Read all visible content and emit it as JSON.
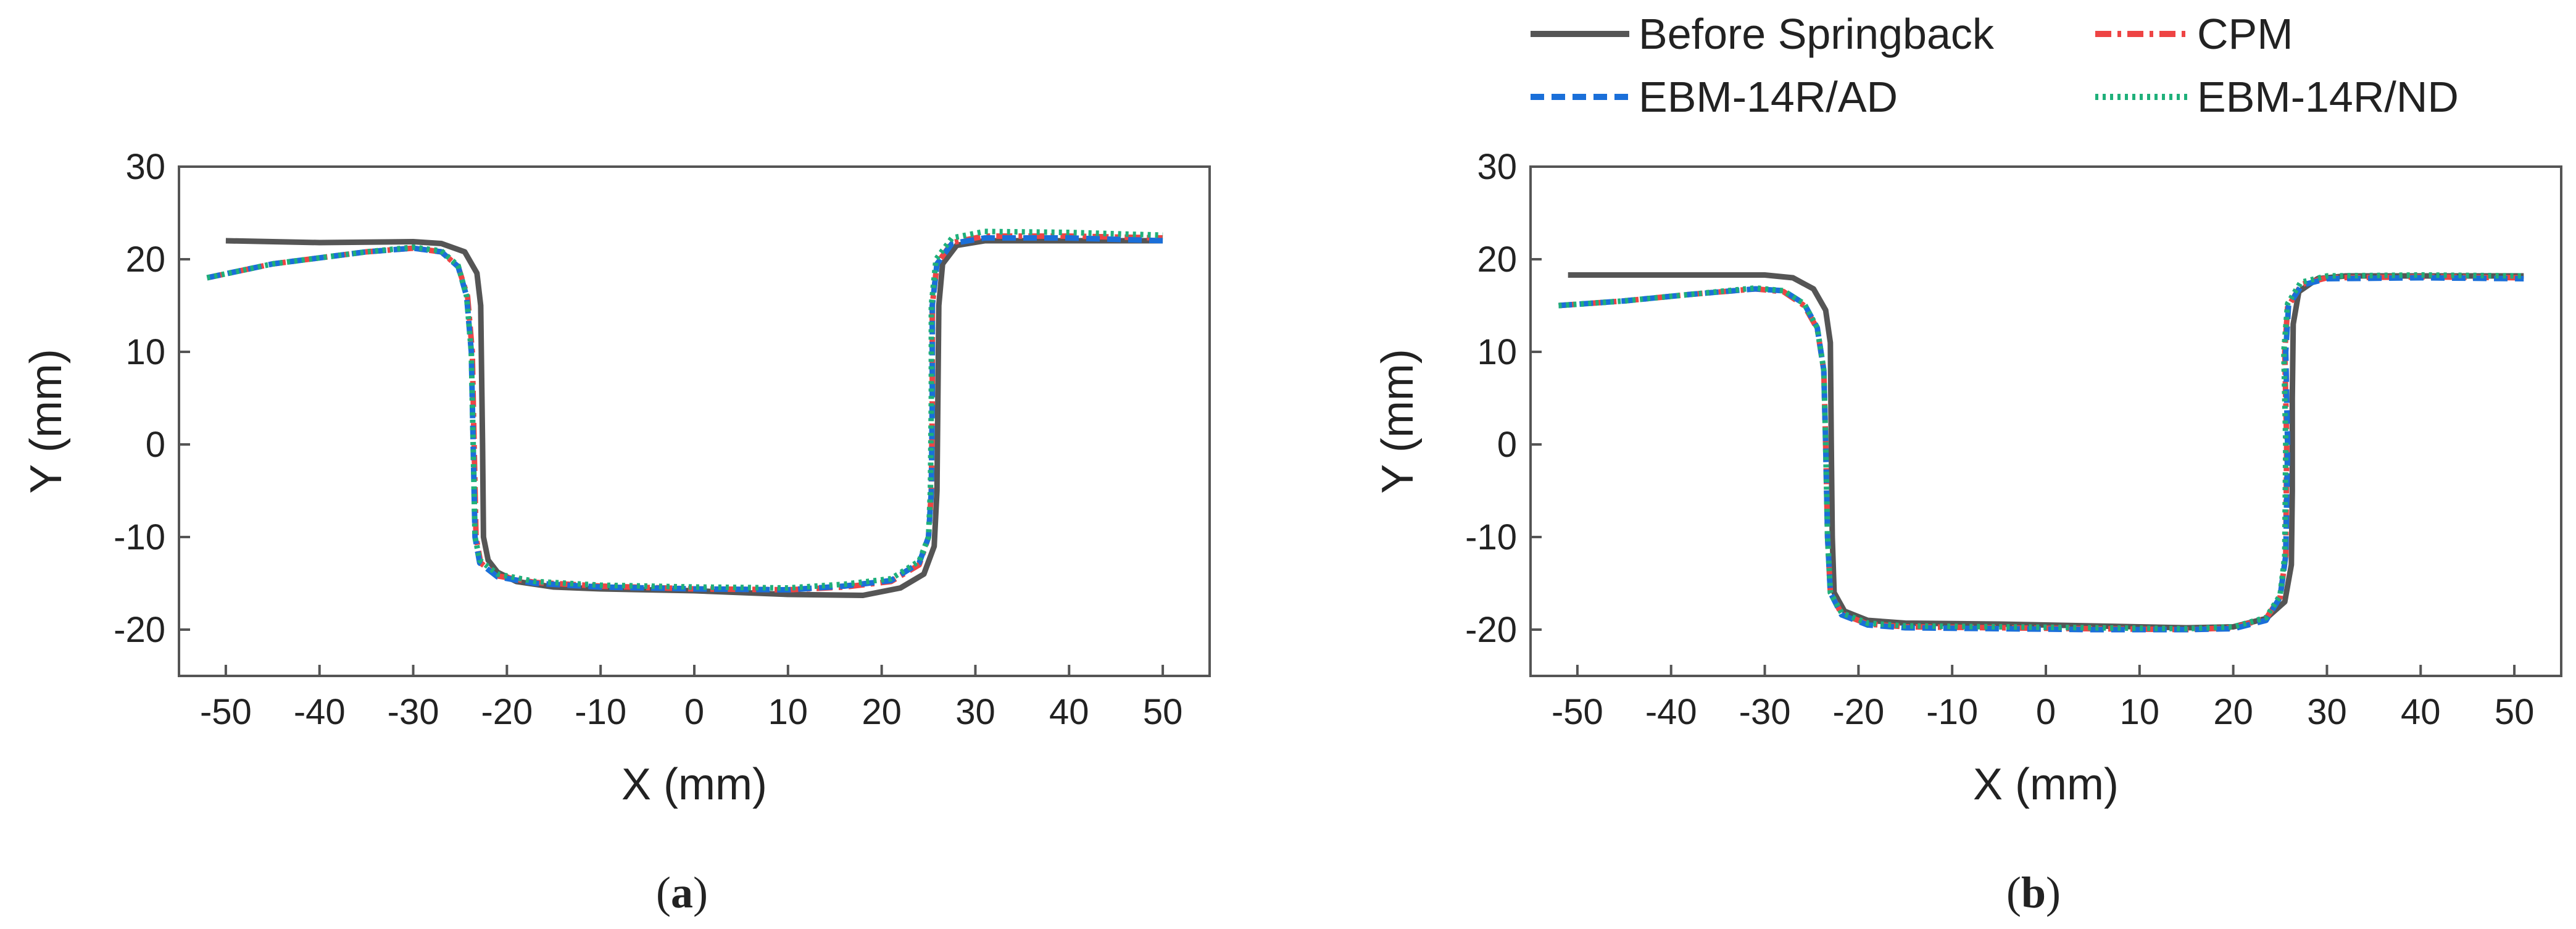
{
  "legend": [
    {
      "label": "Before Springback",
      "color": "#555555",
      "dash": "solid"
    },
    {
      "label": "CPM",
      "color": "#ee4444",
      "dash": "dashdot"
    },
    {
      "label": "EBM-14R/AD",
      "color": "#1a6fd9",
      "dash": "dash"
    },
    {
      "label": "EBM-14R/ND",
      "color": "#1fb07a",
      "dash": "dot"
    }
  ],
  "chart_data": [
    {
      "type": "line",
      "panel": "a",
      "caption": "a",
      "xlabel": "X (mm)",
      "ylabel": "Y (mm)",
      "xlim": [
        -55,
        55
      ],
      "ylim": [
        -25,
        30
      ],
      "xticks": [
        -50,
        -40,
        -30,
        -20,
        -10,
        0,
        10,
        20,
        30,
        40,
        50
      ],
      "yticks": [
        -20,
        -10,
        0,
        10,
        20,
        30
      ],
      "series": [
        {
          "name": "Before Springback",
          "points": [
            [
              -50,
              22
            ],
            [
              -40,
              21.8
            ],
            [
              -30,
              21.9
            ],
            [
              -27,
              21.7
            ],
            [
              -24.5,
              20.8
            ],
            [
              -23.2,
              18.5
            ],
            [
              -22.8,
              15
            ],
            [
              -22.6,
              0
            ],
            [
              -22.5,
              -10
            ],
            [
              -22,
              -12.5
            ],
            [
              -21,
              -13.8
            ],
            [
              -19,
              -14.8
            ],
            [
              -15,
              -15.4
            ],
            [
              -10,
              -15.6
            ],
            [
              0,
              -15.8
            ],
            [
              10,
              -16.2
            ],
            [
              18,
              -16.3
            ],
            [
              22,
              -15.5
            ],
            [
              24.5,
              -14
            ],
            [
              25.6,
              -11
            ],
            [
              25.9,
              -5
            ],
            [
              26,
              5
            ],
            [
              26.1,
              15
            ],
            [
              26.5,
              19.5
            ],
            [
              28,
              21.5
            ],
            [
              31,
              22
            ],
            [
              40,
              22
            ],
            [
              50,
              22
            ]
          ]
        },
        {
          "name": "CPM",
          "points": [
            [
              -52,
              18
            ],
            [
              -45,
              19.5
            ],
            [
              -35,
              20.8
            ],
            [
              -30,
              21.2
            ],
            [
              -27,
              20.8
            ],
            [
              -25.2,
              19.2
            ],
            [
              -24.2,
              16
            ],
            [
              -23.7,
              10
            ],
            [
              -23.5,
              0
            ],
            [
              -23.3,
              -10
            ],
            [
              -22.8,
              -12.8
            ],
            [
              -21,
              -14.2
            ],
            [
              -17,
              -14.9
            ],
            [
              -10,
              -15.3
            ],
            [
              0,
              -15.6
            ],
            [
              10,
              -15.7
            ],
            [
              16,
              -15.4
            ],
            [
              21,
              -14.8
            ],
            [
              24,
              -13
            ],
            [
              25,
              -10
            ],
            [
              25.3,
              -5
            ],
            [
              25.4,
              5
            ],
            [
              25.4,
              15
            ],
            [
              25.9,
              19.5
            ],
            [
              27.5,
              21.8
            ],
            [
              31,
              22.5
            ],
            [
              40,
              22.5
            ],
            [
              50,
              22.3
            ]
          ]
        },
        {
          "name": "EBM-14R/AD",
          "points": [
            [
              -52,
              18
            ],
            [
              -45,
              19.5
            ],
            [
              -35,
              20.8
            ],
            [
              -30,
              21.2
            ],
            [
              -27,
              20.8
            ],
            [
              -25.2,
              19.2
            ],
            [
              -24.3,
              16
            ],
            [
              -23.8,
              10
            ],
            [
              -23.6,
              0
            ],
            [
              -23.4,
              -10
            ],
            [
              -22.9,
              -12.8
            ],
            [
              -21,
              -14.3
            ],
            [
              -17,
              -15
            ],
            [
              -10,
              -15.4
            ],
            [
              0,
              -15.6
            ],
            [
              10,
              -15.7
            ],
            [
              16,
              -15.3
            ],
            [
              21,
              -14.7
            ],
            [
              24,
              -12.8
            ],
            [
              25,
              -10
            ],
            [
              25.3,
              -5
            ],
            [
              25.4,
              5
            ],
            [
              25.4,
              15
            ],
            [
              25.9,
              19.5
            ],
            [
              27.5,
              21.7
            ],
            [
              31,
              22.3
            ],
            [
              40,
              22.3
            ],
            [
              50,
              22
            ]
          ]
        },
        {
          "name": "EBM-14R/ND",
          "points": [
            [
              -52,
              18
            ],
            [
              -45,
              19.5
            ],
            [
              -35,
              20.8
            ],
            [
              -30,
              21.3
            ],
            [
              -27,
              20.9
            ],
            [
              -25.2,
              19.3
            ],
            [
              -24.3,
              16
            ],
            [
              -23.8,
              10
            ],
            [
              -23.6,
              0
            ],
            [
              -23.4,
              -10
            ],
            [
              -22.9,
              -12.5
            ],
            [
              -21,
              -14
            ],
            [
              -17,
              -14.8
            ],
            [
              -10,
              -15.2
            ],
            [
              0,
              -15.4
            ],
            [
              10,
              -15.5
            ],
            [
              16,
              -15.1
            ],
            [
              21,
              -14.5
            ],
            [
              24,
              -12.6
            ],
            [
              25,
              -10
            ],
            [
              25.2,
              -5
            ],
            [
              25.3,
              5
            ],
            [
              25.3,
              15
            ],
            [
              25.8,
              20
            ],
            [
              27.5,
              22.3
            ],
            [
              31,
              23
            ],
            [
              40,
              22.9
            ],
            [
              50,
              22.6
            ]
          ]
        }
      ]
    },
    {
      "type": "line",
      "panel": "b",
      "caption": "b",
      "xlabel": "X (mm)",
      "ylabel": "Y (mm)",
      "xlim": [
        -55,
        55
      ],
      "ylim": [
        -25,
        30
      ],
      "xticks": [
        -50,
        -40,
        -30,
        -20,
        -10,
        0,
        10,
        20,
        30,
        40,
        50
      ],
      "yticks": [
        -20,
        -10,
        0,
        10,
        20,
        30
      ],
      "series": [
        {
          "name": "Before Springback",
          "points": [
            [
              -51,
              18.3
            ],
            [
              -40,
              18.3
            ],
            [
              -30,
              18.3
            ],
            [
              -27,
              18
            ],
            [
              -24.8,
              16.8
            ],
            [
              -23.5,
              14.5
            ],
            [
              -23,
              11
            ],
            [
              -22.9,
              0
            ],
            [
              -22.8,
              -10
            ],
            [
              -22.6,
              -16
            ],
            [
              -21.5,
              -18
            ],
            [
              -19,
              -19
            ],
            [
              -15,
              -19.3
            ],
            [
              -5,
              -19.4
            ],
            [
              5,
              -19.6
            ],
            [
              15,
              -19.8
            ],
            [
              20,
              -19.7
            ],
            [
              23.5,
              -18.8
            ],
            [
              25.5,
              -17
            ],
            [
              26.2,
              -13
            ],
            [
              26.3,
              -5
            ],
            [
              26.3,
              5
            ],
            [
              26.4,
              13
            ],
            [
              27,
              16.5
            ],
            [
              29,
              17.9
            ],
            [
              32,
              18.2
            ],
            [
              40,
              18.2
            ],
            [
              51,
              18.2
            ]
          ]
        },
        {
          "name": "CPM",
          "points": [
            [
              -52,
              15
            ],
            [
              -45,
              15.5
            ],
            [
              -38,
              16.2
            ],
            [
              -31,
              16.8
            ],
            [
              -28,
              16.5
            ],
            [
              -25.8,
              15
            ],
            [
              -24.4,
              12.5
            ],
            [
              -23.7,
              8
            ],
            [
              -23.5,
              0
            ],
            [
              -23.3,
              -10
            ],
            [
              -23,
              -16
            ],
            [
              -21.8,
              -18.3
            ],
            [
              -19,
              -19.4
            ],
            [
              -15,
              -19.7
            ],
            [
              -5,
              -19.8
            ],
            [
              5,
              -19.9
            ],
            [
              15,
              -20
            ],
            [
              20,
              -19.8
            ],
            [
              23.5,
              -18.8
            ],
            [
              25,
              -16.5
            ],
            [
              25.6,
              -12
            ],
            [
              25.7,
              0
            ],
            [
              25.5,
              10
            ],
            [
              25.8,
              14.8
            ],
            [
              27.3,
              17.3
            ],
            [
              30,
              18
            ],
            [
              40,
              18.1
            ],
            [
              51,
              18
            ]
          ]
        },
        {
          "name": "EBM-14R/AD",
          "points": [
            [
              -52,
              15
            ],
            [
              -45,
              15.5
            ],
            [
              -38,
              16.2
            ],
            [
              -31,
              16.8
            ],
            [
              -28,
              16.6
            ],
            [
              -25.8,
              15.2
            ],
            [
              -24.4,
              12.6
            ],
            [
              -23.7,
              8
            ],
            [
              -23.5,
              0
            ],
            [
              -23.3,
              -10
            ],
            [
              -23,
              -16
            ],
            [
              -21.8,
              -18.4
            ],
            [
              -19,
              -19.5
            ],
            [
              -15,
              -19.8
            ],
            [
              -5,
              -19.9
            ],
            [
              5,
              -20
            ],
            [
              15,
              -20
            ],
            [
              20,
              -19.9
            ],
            [
              23.5,
              -19
            ],
            [
              25,
              -16.5
            ],
            [
              25.6,
              -12
            ],
            [
              25.8,
              0
            ],
            [
              25.6,
              10
            ],
            [
              25.9,
              15
            ],
            [
              27.3,
              17.2
            ],
            [
              30,
              17.9
            ],
            [
              40,
              18
            ],
            [
              51,
              17.9
            ]
          ]
        },
        {
          "name": "EBM-14R/ND",
          "points": [
            [
              -52,
              15
            ],
            [
              -45,
              15.5
            ],
            [
              -38,
              16.2
            ],
            [
              -31,
              16.9
            ],
            [
              -28,
              16.6
            ],
            [
              -25.8,
              15.2
            ],
            [
              -24.4,
              12.6
            ],
            [
              -23.7,
              8
            ],
            [
              -23.5,
              0
            ],
            [
              -23.3,
              -10
            ],
            [
              -23,
              -16
            ],
            [
              -21.8,
              -18.2
            ],
            [
              -19,
              -19.3
            ],
            [
              -15,
              -19.6
            ],
            [
              -5,
              -19.7
            ],
            [
              5,
              -19.8
            ],
            [
              15,
              -19.9
            ],
            [
              20,
              -19.7
            ],
            [
              23.5,
              -18.7
            ],
            [
              25,
              -16.3
            ],
            [
              25.5,
              -12
            ],
            [
              25.6,
              0
            ],
            [
              25.4,
              10
            ],
            [
              25.8,
              15.2
            ],
            [
              27.2,
              17.5
            ],
            [
              30,
              18.2
            ],
            [
              40,
              18.3
            ],
            [
              51,
              18.2
            ]
          ]
        }
      ]
    }
  ]
}
